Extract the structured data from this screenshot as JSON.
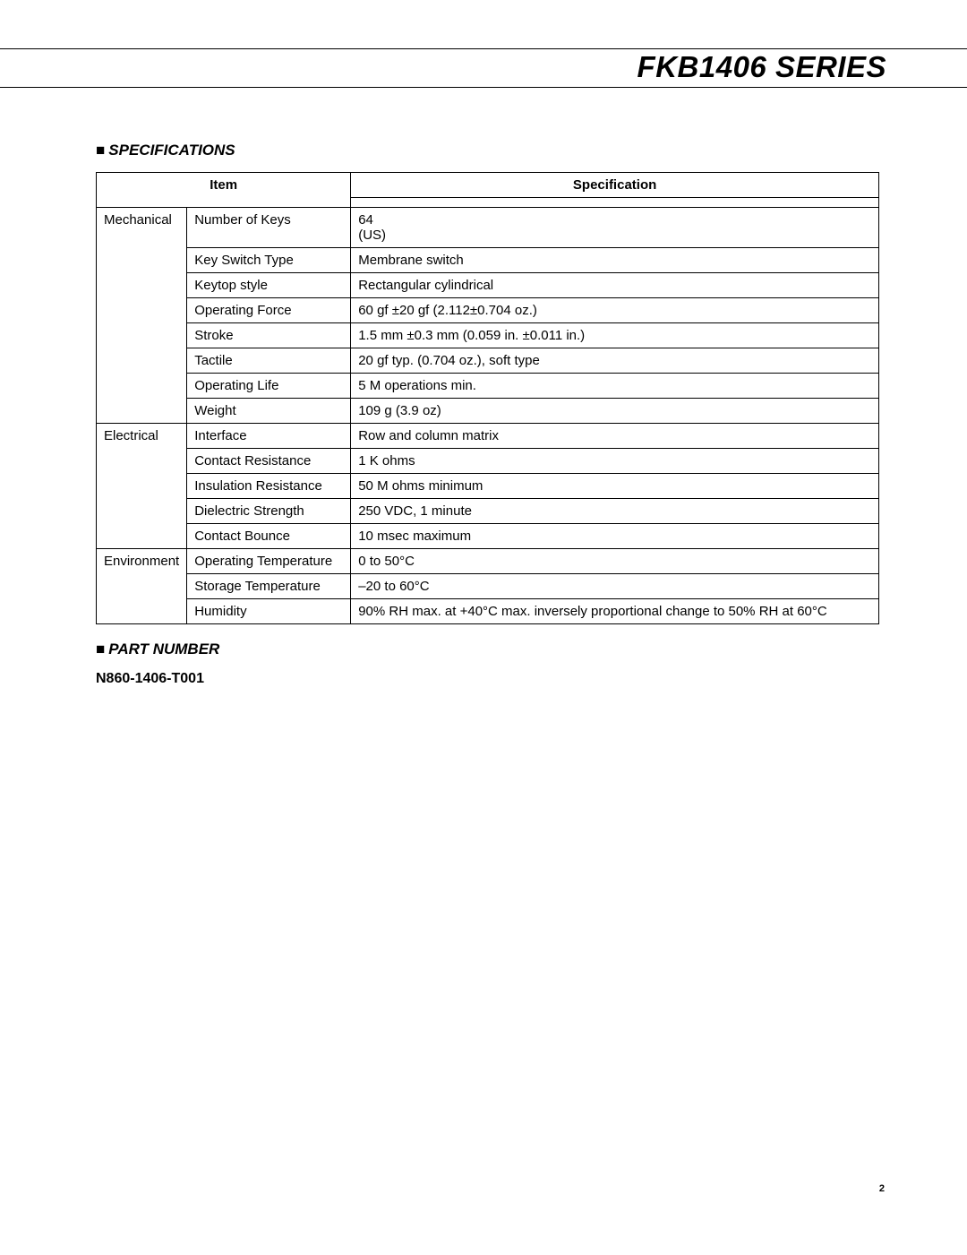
{
  "header": {
    "series_title": "FKB1406 SERIES",
    "rule_color": "#000000"
  },
  "sections": {
    "spec_heading": "SPECIFICATIONS",
    "part_heading": "PART NUMBER",
    "bullet": "■"
  },
  "spec_table": {
    "col_item": "Item",
    "col_spec": "Specification",
    "groups": [
      {
        "category": "Mechanical",
        "rows": [
          {
            "item": "Number of Keys",
            "spec": "64\n(US)"
          },
          {
            "item": "Key Switch Type",
            "spec": "Membrane switch"
          },
          {
            "item": "Keytop style",
            "spec": "Rectangular cylindrical"
          },
          {
            "item": "Operating Force",
            "spec": "60 gf ±20 gf (2.112±0.704 oz.)"
          },
          {
            "item": "Stroke",
            "spec": "1.5 mm ±0.3 mm (0.059 in. ±0.011 in.)"
          },
          {
            "item": "Tactile",
            "spec": "20 gf typ. (0.704 oz.), soft type"
          },
          {
            "item": "Operating Life",
            "spec": "5 M operations min."
          },
          {
            "item": "Weight",
            "spec": "109 g (3.9 oz)"
          }
        ]
      },
      {
        "category": "Electrical",
        "rows": [
          {
            "item": "Interface",
            "spec": "Row and column matrix"
          },
          {
            "item": "Contact Resistance",
            "spec": "1 K ohms"
          },
          {
            "item": "Insulation Resistance",
            "spec": "50 M ohms minimum"
          },
          {
            "item": "Dielectric Strength",
            "spec": "250 VDC, 1 minute"
          },
          {
            "item": "Contact Bounce",
            "spec": "10 msec maximum"
          }
        ]
      },
      {
        "category": "Environment",
        "rows": [
          {
            "item": "Operating Temperature",
            "spec": "   0 to 50°C"
          },
          {
            "item": "Storage Temperature",
            "spec": "–20 to 60°C"
          },
          {
            "item": "Humidity",
            "spec": "90% RH max. at +40°C max. inversely proportional change to 50% RH at 60°C"
          }
        ]
      }
    ]
  },
  "part_number": "N860-1406-T001",
  "page_number": "2",
  "style": {
    "body_bg": "#ffffff",
    "text_color": "#000000",
    "border_color": "#000000",
    "title_fontsize": 33,
    "section_fontsize": 17,
    "table_fontsize": 15,
    "part_fontsize": 16
  }
}
